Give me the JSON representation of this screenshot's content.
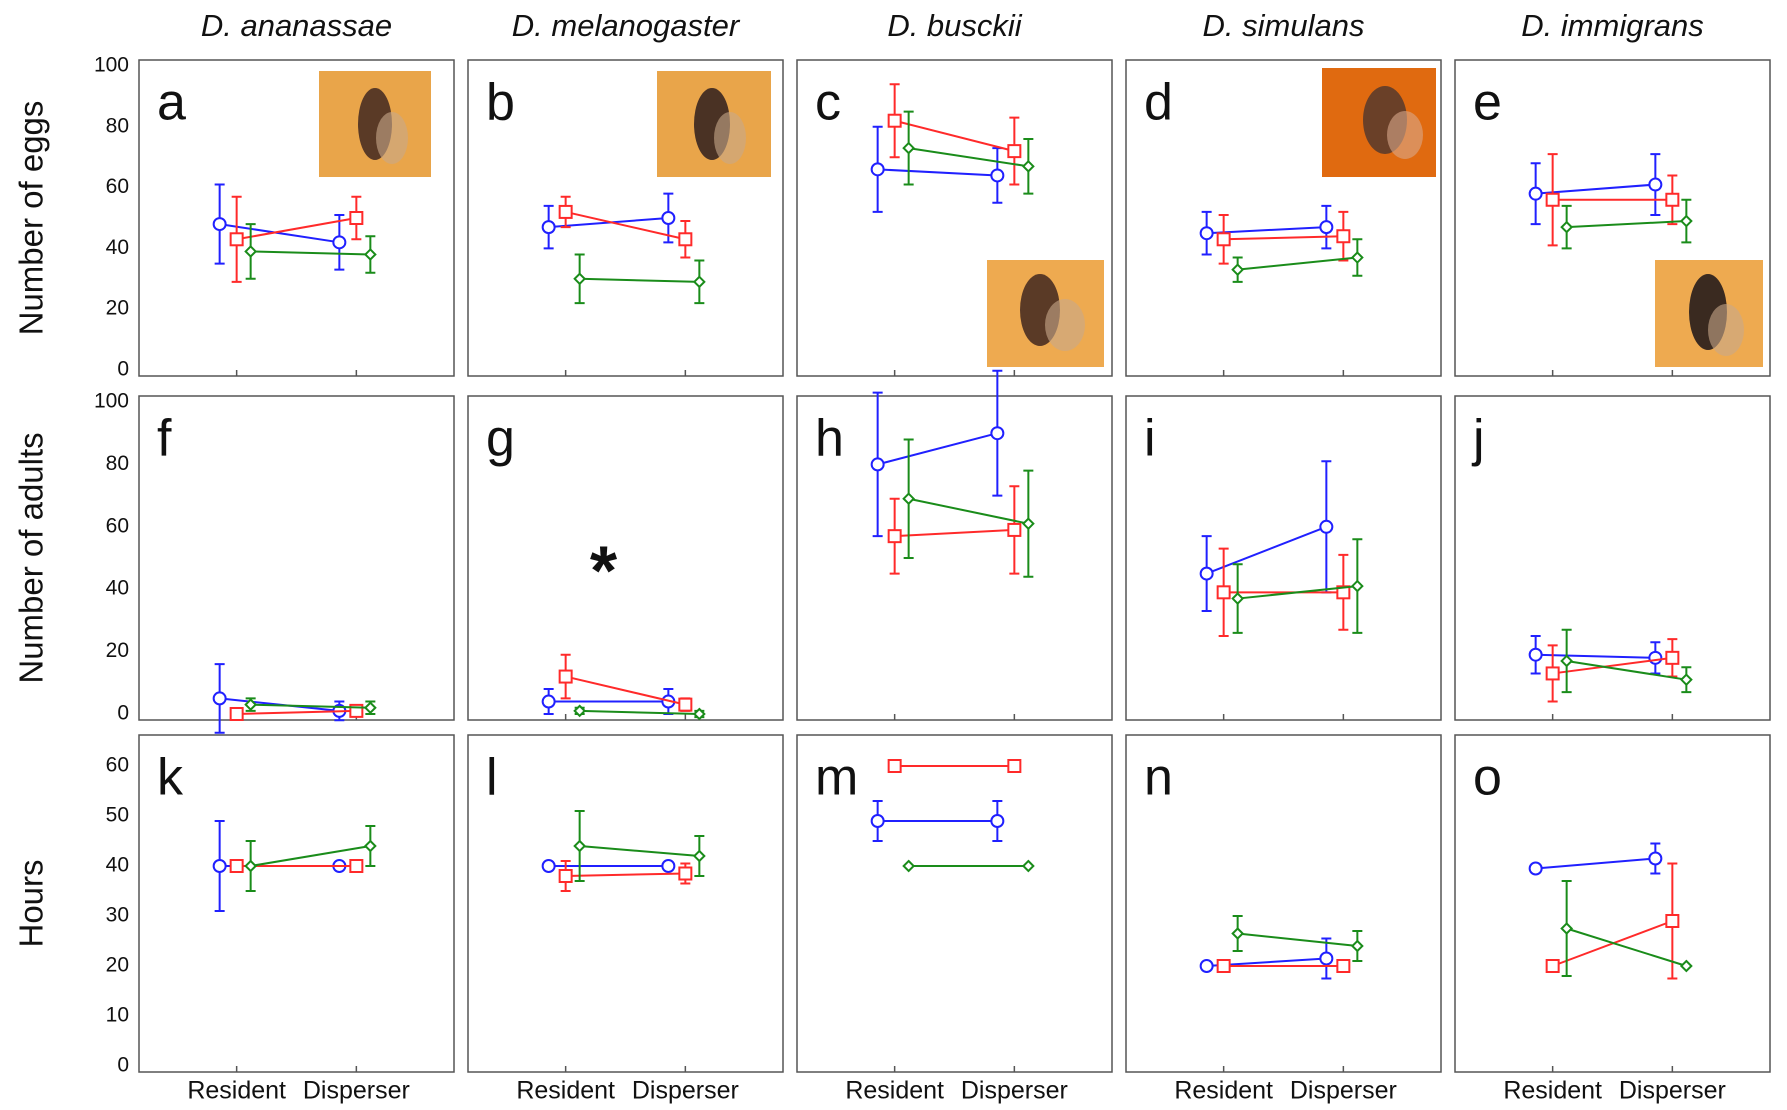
{
  "chart_data": [
    {
      "type": "line",
      "title": "D. ananassae",
      "label": "a",
      "ylabel": "Number of eggs",
      "ylim": [
        0,
        100
      ],
      "yticks": [
        0,
        20,
        40,
        60,
        80,
        100
      ],
      "series": [
        {
          "color": "#2020ff",
          "marker": "circle",
          "values": [
            48,
            42
          ],
          "errors": [
            13,
            9
          ]
        },
        {
          "color": "#ff2a2a",
          "marker": "square",
          "values": [
            43,
            50
          ],
          "errors": [
            14,
            7
          ]
        },
        {
          "color": "#1a8c1a",
          "marker": "diamond",
          "values": [
            39,
            38
          ],
          "errors": [
            9,
            6
          ]
        }
      ]
    },
    {
      "type": "line",
      "title": "D. melanogaster",
      "label": "b",
      "ylim": [
        0,
        100
      ],
      "series": [
        {
          "color": "#2020ff",
          "marker": "circle",
          "values": [
            47,
            50
          ],
          "errors": [
            7,
            8
          ]
        },
        {
          "color": "#ff2a2a",
          "marker": "square",
          "values": [
            52,
            43
          ],
          "errors": [
            5,
            6
          ]
        },
        {
          "color": "#1a8c1a",
          "marker": "diamond",
          "values": [
            30,
            29
          ],
          "errors": [
            8,
            7
          ]
        }
      ]
    },
    {
      "type": "line",
      "title": "D. busckii",
      "label": "c",
      "ylim": [
        0,
        100
      ],
      "series": [
        {
          "color": "#2020ff",
          "marker": "circle",
          "values": [
            66,
            64
          ],
          "errors": [
            14,
            9
          ]
        },
        {
          "color": "#ff2a2a",
          "marker": "square",
          "values": [
            82,
            72
          ],
          "errors": [
            12,
            11
          ]
        },
        {
          "color": "#1a8c1a",
          "marker": "diamond",
          "values": [
            73,
            67
          ],
          "errors": [
            12,
            9
          ]
        }
      ]
    },
    {
      "type": "line",
      "title": "D. simulans",
      "label": "d",
      "ylim": [
        0,
        100
      ],
      "series": [
        {
          "color": "#2020ff",
          "marker": "circle",
          "values": [
            45,
            47
          ],
          "errors": [
            7,
            7
          ]
        },
        {
          "color": "#ff2a2a",
          "marker": "square",
          "values": [
            43,
            44
          ],
          "errors": [
            8,
            8
          ]
        },
        {
          "color": "#1a8c1a",
          "marker": "diamond",
          "values": [
            33,
            37
          ],
          "errors": [
            4,
            6
          ]
        }
      ]
    },
    {
      "type": "line",
      "title": "D. immigrans",
      "label": "e",
      "ylim": [
        0,
        100
      ],
      "series": [
        {
          "color": "#2020ff",
          "marker": "circle",
          "values": [
            58,
            61
          ],
          "errors": [
            10,
            10
          ]
        },
        {
          "color": "#ff2a2a",
          "marker": "square",
          "values": [
            56,
            56
          ],
          "errors": [
            15,
            8
          ]
        },
        {
          "color": "#1a8c1a",
          "marker": "diamond",
          "values": [
            47,
            49
          ],
          "errors": [
            7,
            7
          ]
        }
      ]
    },
    {
      "type": "line",
      "label": "f",
      "ylabel": "Number of adults",
      "ylim": [
        0,
        100
      ],
      "yticks": [
        0,
        20,
        40,
        60,
        80,
        100
      ],
      "series": [
        {
          "color": "#2020ff",
          "marker": "circle",
          "values": [
            5,
            1
          ],
          "errors": [
            11,
            3
          ]
        },
        {
          "color": "#ff2a2a",
          "marker": "square",
          "values": [
            0,
            1
          ],
          "errors": [
            1,
            1
          ]
        },
        {
          "color": "#1a8c1a",
          "marker": "diamond",
          "values": [
            3,
            2
          ],
          "errors": [
            2,
            2
          ]
        }
      ]
    },
    {
      "type": "line",
      "label": "g",
      "annotation": "*",
      "ylim": [
        0,
        100
      ],
      "series": [
        {
          "color": "#2020ff",
          "marker": "circle",
          "values": [
            4,
            4
          ],
          "errors": [
            4,
            4
          ]
        },
        {
          "color": "#ff2a2a",
          "marker": "square",
          "values": [
            12,
            3
          ],
          "errors": [
            7,
            2
          ]
        },
        {
          "color": "#1a8c1a",
          "marker": "diamond",
          "values": [
            1,
            0
          ],
          "errors": [
            1,
            1
          ]
        }
      ]
    },
    {
      "type": "line",
      "label": "h",
      "ylim": [
        0,
        100
      ],
      "series": [
        {
          "color": "#2020ff",
          "marker": "circle",
          "values": [
            80,
            90
          ],
          "errors": [
            23,
            20
          ]
        },
        {
          "color": "#ff2a2a",
          "marker": "square",
          "values": [
            57,
            59
          ],
          "errors": [
            12,
            14
          ]
        },
        {
          "color": "#1a8c1a",
          "marker": "diamond",
          "values": [
            69,
            61
          ],
          "errors": [
            19,
            17
          ]
        }
      ]
    },
    {
      "type": "line",
      "label": "i",
      "ylim": [
        0,
        100
      ],
      "series": [
        {
          "color": "#2020ff",
          "marker": "circle",
          "values": [
            45,
            60
          ],
          "errors": [
            12,
            21
          ]
        },
        {
          "color": "#ff2a2a",
          "marker": "square",
          "values": [
            39,
            39
          ],
          "errors": [
            14,
            12
          ]
        },
        {
          "color": "#1a8c1a",
          "marker": "diamond",
          "values": [
            37,
            41
          ],
          "errors": [
            11,
            15
          ]
        }
      ]
    },
    {
      "type": "line",
      "label": "j",
      "ylim": [
        0,
        100
      ],
      "series": [
        {
          "color": "#2020ff",
          "marker": "circle",
          "values": [
            19,
            18
          ],
          "errors": [
            6,
            5
          ]
        },
        {
          "color": "#ff2a2a",
          "marker": "square",
          "values": [
            13,
            18
          ],
          "errors": [
            9,
            6
          ]
        },
        {
          "color": "#1a8c1a",
          "marker": "diamond",
          "values": [
            17,
            11
          ],
          "errors": [
            10,
            4
          ]
        }
      ]
    },
    {
      "type": "line",
      "label": "k",
      "ylabel": "Hours",
      "ylim": [
        0,
        65
      ],
      "yticks": [
        0,
        10,
        20,
        30,
        40,
        50,
        60
      ],
      "categories": [
        "Resident",
        "Disperser"
      ],
      "series": [
        {
          "color": "#2020ff",
          "marker": "circle",
          "values": [
            40,
            40
          ],
          "errors": [
            9,
            0
          ]
        },
        {
          "color": "#ff2a2a",
          "marker": "square",
          "values": [
            40,
            40
          ],
          "errors": [
            0,
            0
          ]
        },
        {
          "color": "#1a8c1a",
          "marker": "diamond",
          "values": [
            40,
            44
          ],
          "errors": [
            5,
            4
          ]
        }
      ]
    },
    {
      "type": "line",
      "label": "l",
      "ylim": [
        0,
        65
      ],
      "categories": [
        "Resident",
        "Disperser"
      ],
      "series": [
        {
          "color": "#2020ff",
          "marker": "circle",
          "values": [
            40,
            40
          ],
          "errors": [
            0,
            0
          ]
        },
        {
          "color": "#ff2a2a",
          "marker": "square",
          "values": [
            38,
            38.5
          ],
          "errors": [
            3,
            2
          ]
        },
        {
          "color": "#1a8c1a",
          "marker": "diamond",
          "values": [
            44,
            42
          ],
          "errors": [
            7,
            4
          ]
        }
      ]
    },
    {
      "type": "line",
      "label": "m",
      "ylim": [
        0,
        65
      ],
      "categories": [
        "Resident",
        "Disperser"
      ],
      "series": [
        {
          "color": "#2020ff",
          "marker": "circle",
          "values": [
            49,
            49
          ],
          "errors": [
            4,
            4
          ]
        },
        {
          "color": "#ff2a2a",
          "marker": "square",
          "values": [
            60,
            60
          ],
          "errors": [
            0,
            0
          ]
        },
        {
          "color": "#1a8c1a",
          "marker": "diamond",
          "values": [
            40,
            40
          ],
          "errors": [
            0,
            0
          ]
        }
      ]
    },
    {
      "type": "line",
      "label": "n",
      "ylim": [
        0,
        65
      ],
      "categories": [
        "Resident",
        "Disperser"
      ],
      "series": [
        {
          "color": "#2020ff",
          "marker": "circle",
          "values": [
            20,
            21.5
          ],
          "errors": [
            0,
            4
          ]
        },
        {
          "color": "#ff2a2a",
          "marker": "square",
          "values": [
            20,
            20
          ],
          "errors": [
            0,
            0
          ]
        },
        {
          "color": "#1a8c1a",
          "marker": "diamond",
          "values": [
            26.5,
            24
          ],
          "errors": [
            3.5,
            3
          ]
        }
      ]
    },
    {
      "type": "line",
      "label": "o",
      "ylim": [
        0,
        65
      ],
      "categories": [
        "Resident",
        "Disperser"
      ],
      "series": [
        {
          "color": "#2020ff",
          "marker": "circle",
          "values": [
            39.5,
            41.5
          ],
          "errors": [
            0,
            3
          ]
        },
        {
          "color": "#ff2a2a",
          "marker": "square",
          "values": [
            20,
            29
          ],
          "errors": [
            0,
            11.5
          ]
        },
        {
          "color": "#1a8c1a",
          "marker": "diamond",
          "values": [
            27.5,
            20
          ],
          "errors": [
            9.5,
            0
          ]
        }
      ]
    }
  ]
}
